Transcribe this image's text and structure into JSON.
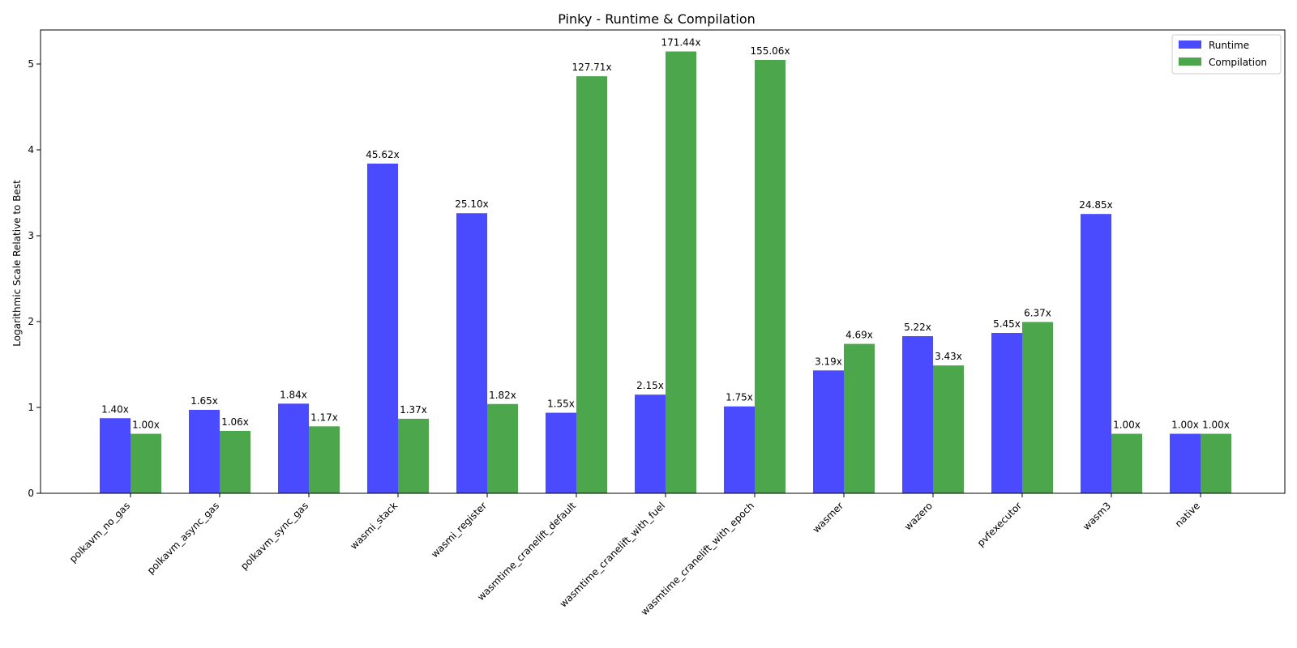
{
  "chart_data": {
    "type": "bar",
    "title": "Pinky - Runtime & Compilation",
    "xlabel": "",
    "ylabel": "Logarithmic Scale Relative to Best",
    "ylim": [
      0,
      5.4
    ],
    "yticks": [
      0,
      1,
      2,
      3,
      4,
      5
    ],
    "grid": false,
    "legend_position": "top-right",
    "categories": [
      "polkavm_no_gas",
      "polkavm_async_gas",
      "polkavm_sync_gas",
      "wasmi_stack",
      "wasmi_register",
      "wasmtime_cranelift_default",
      "wasmtime_cranelift_with_fuel",
      "wasmtime_cranelift_with_epoch",
      "wasmer",
      "wazero",
      "pvfexecutor",
      "wasm3",
      "native"
    ],
    "series": [
      {
        "name": "Runtime",
        "color": "#4a4aff",
        "values": [
          0.875,
          0.972,
          1.044,
          3.84,
          3.262,
          0.938,
          1.149,
          1.012,
          1.431,
          1.83,
          1.868,
          3.253,
          0.693
        ],
        "labels": [
          "1.40x",
          "1.65x",
          "1.84x",
          "45.62x",
          "25.10x",
          "1.55x",
          "2.15x",
          "1.75x",
          "3.19x",
          "5.22x",
          "5.45x",
          "24.85x",
          "1.00x"
        ]
      },
      {
        "name": "Compilation",
        "color": "#4ca64c",
        "values": [
          0.693,
          0.727,
          0.78,
          0.868,
          1.04,
          4.857,
          5.146,
          5.047,
          1.74,
          1.489,
          1.995,
          0.693,
          0.693
        ],
        "labels": [
          "1.00x",
          "1.06x",
          "1.17x",
          "1.37x",
          "1.82x",
          "127.71x",
          "171.44x",
          "155.06x",
          "4.69x",
          "3.43x",
          "6.37x",
          "1.00x",
          "1.00x"
        ]
      }
    ]
  }
}
